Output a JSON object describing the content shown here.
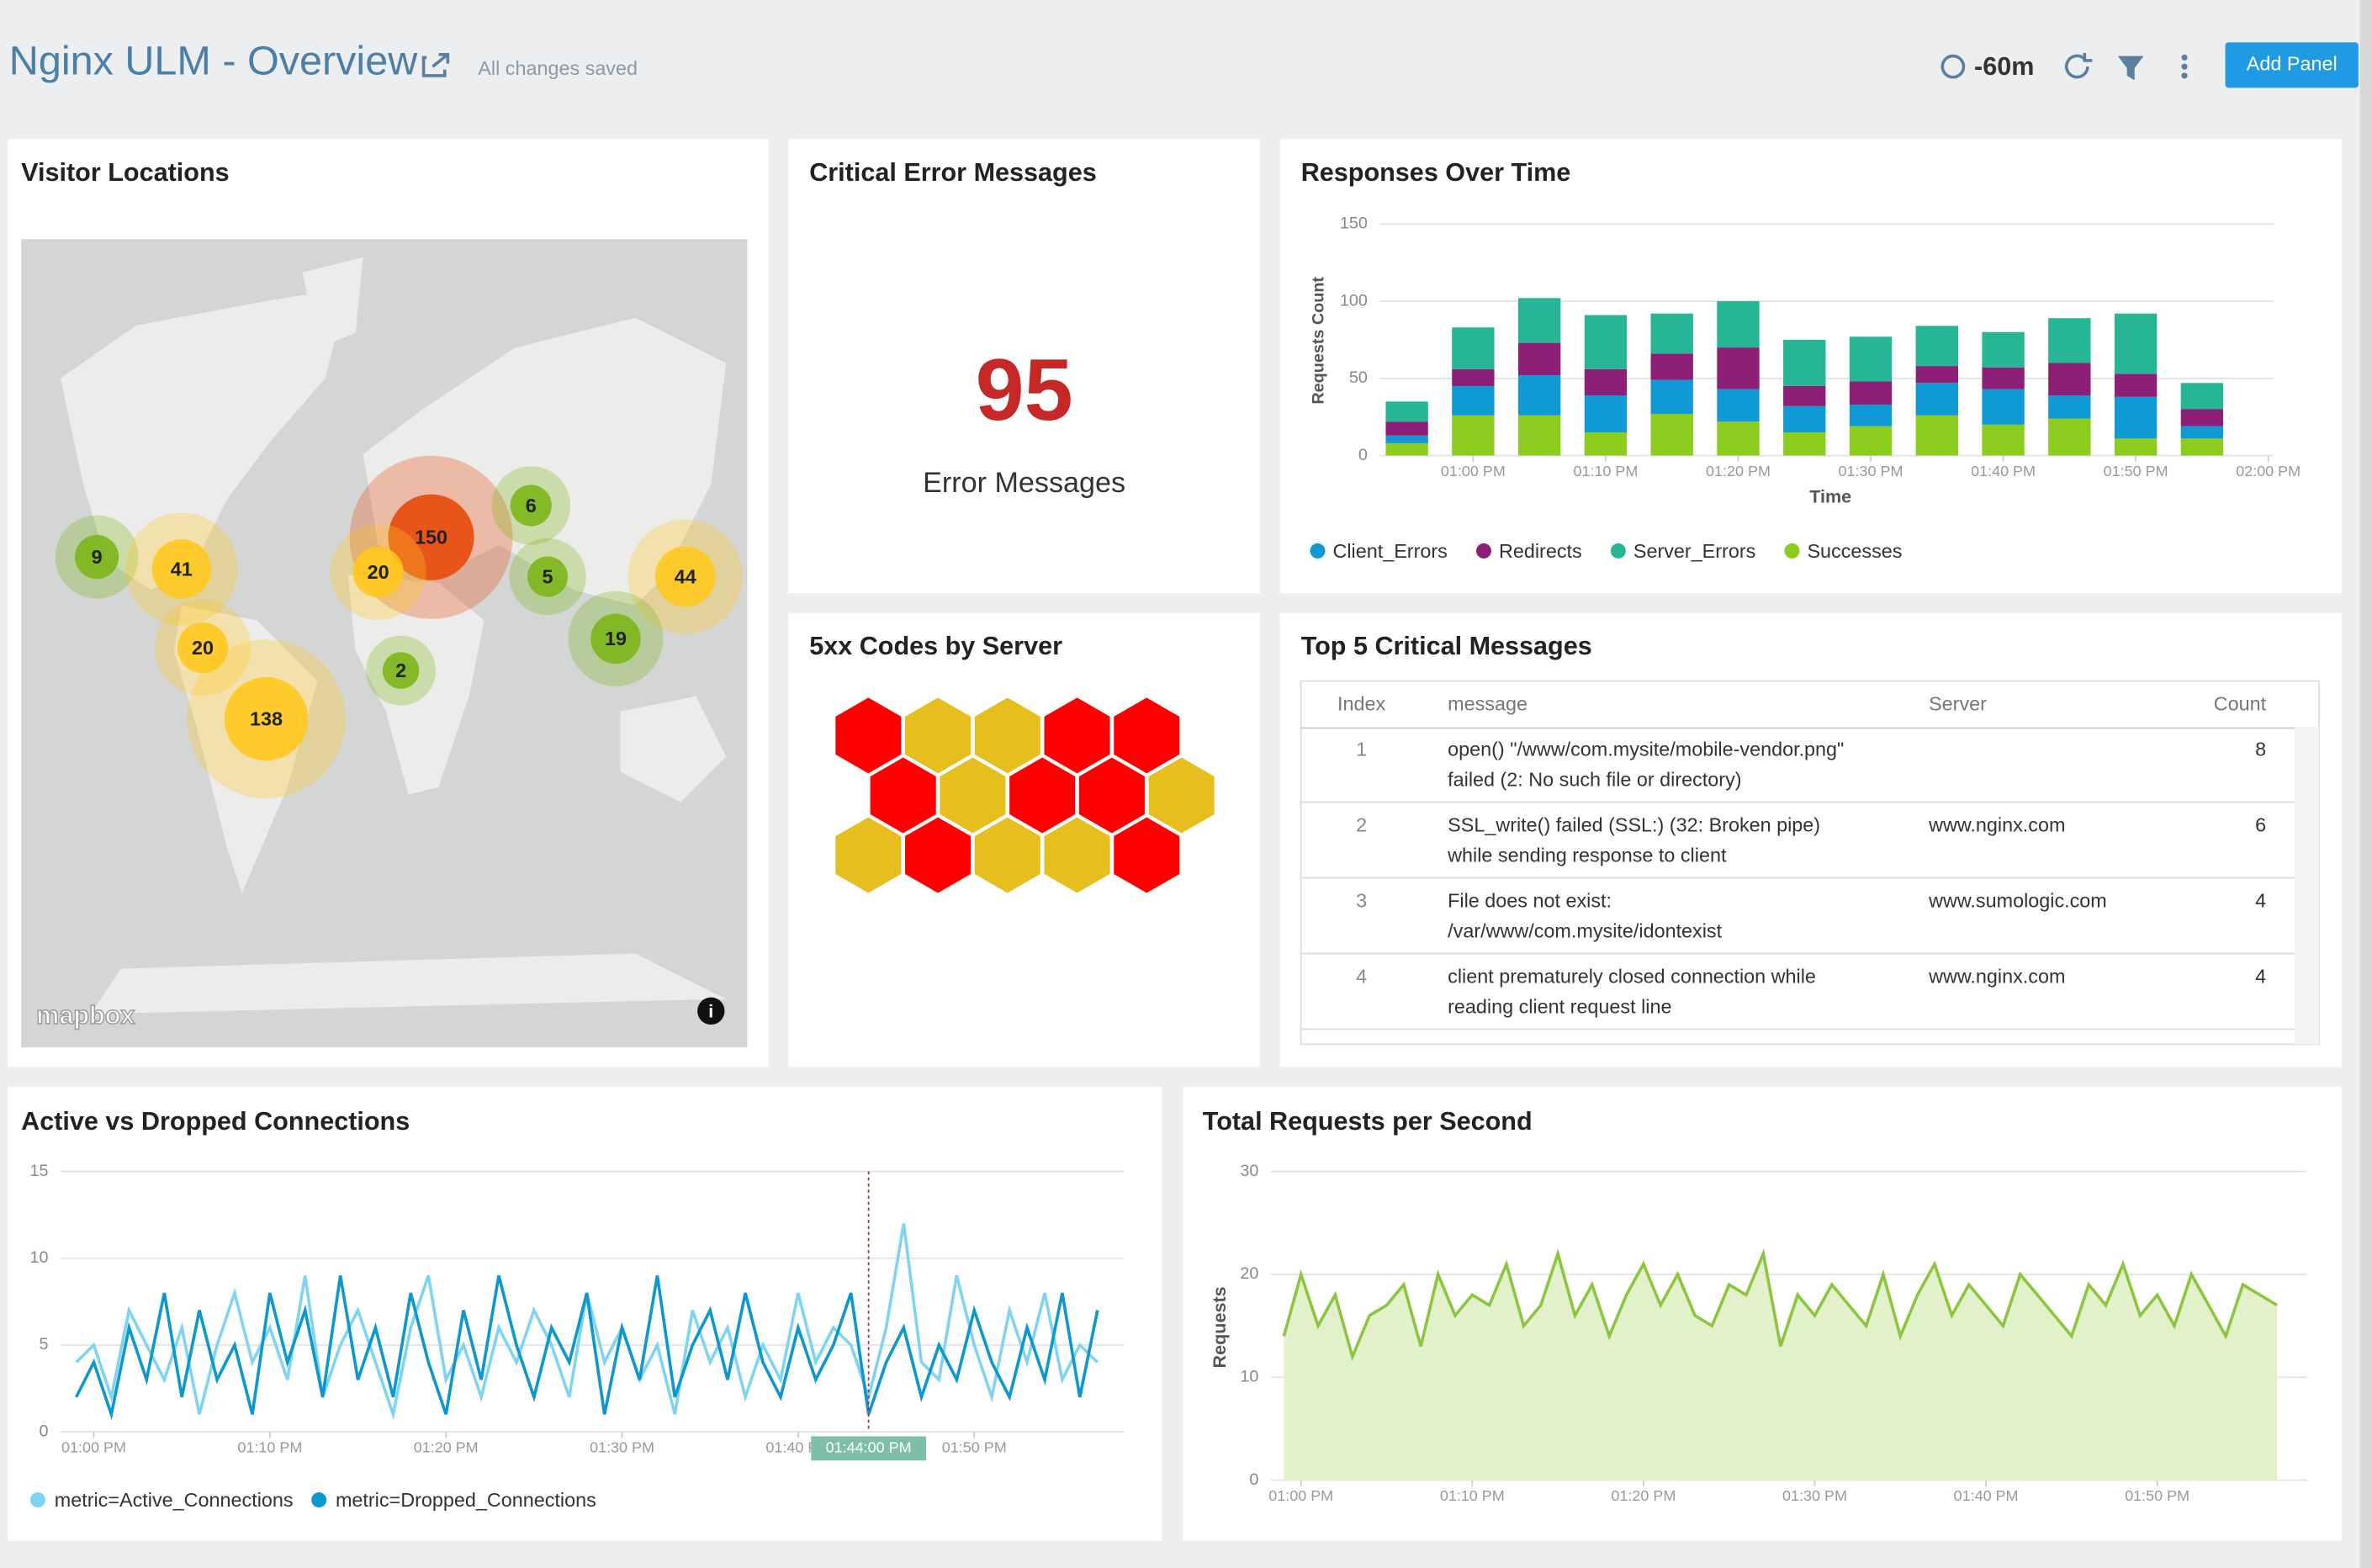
{
  "header": {
    "title": "Nginx ULM - Overview",
    "status": "All changes saved",
    "time_range": "-60m",
    "add_panel": "Add Panel"
  },
  "panels": {
    "visitor_locations": {
      "title": "Visitor Locations",
      "attribution": "mapbox",
      "clusters": [
        {
          "value": 9,
          "color": "#7cb518"
        },
        {
          "value": 41,
          "color": "#ffc81e"
        },
        {
          "value": 20,
          "color": "#ffc81e"
        },
        {
          "value": 138,
          "color": "#ffc81e"
        },
        {
          "value": 150,
          "color": "#e84a0c"
        },
        {
          "value": 20,
          "color": "#ffc81e"
        },
        {
          "value": 2,
          "color": "#7cb518"
        },
        {
          "value": 6,
          "color": "#7cb518"
        },
        {
          "value": 5,
          "color": "#7cb518"
        },
        {
          "value": 44,
          "color": "#ffc81e"
        },
        {
          "value": 19,
          "color": "#7cb518"
        }
      ]
    },
    "critical_errors": {
      "title": "Critical Error Messages",
      "value": 95,
      "label": "Error Messages",
      "color": "#c62828"
    },
    "responses": {
      "title": "Responses Over Time",
      "type": "bar",
      "stacked": true,
      "y_label": "Requests Count",
      "x_label": "Time",
      "ylim": [
        0,
        150
      ],
      "yticks": [
        0,
        50,
        100,
        150
      ],
      "xticks": [
        {
          "value": 1,
          "label": "01:00 PM"
        },
        {
          "value": 3,
          "label": "01:10 PM"
        },
        {
          "value": 5,
          "label": "01:20 PM"
        },
        {
          "value": 7,
          "label": "01:30 PM"
        },
        {
          "value": 9,
          "label": "01:40 PM"
        },
        {
          "value": 11,
          "label": "01:50 PM"
        },
        {
          "value": 13,
          "label": "02:00 PM"
        }
      ],
      "series": [
        {
          "name": "Client_Errors",
          "color": "#0f9ad6",
          "values": [
            5,
            19,
            26,
            24,
            22,
            21,
            17,
            14,
            21,
            23,
            15,
            27,
            8
          ]
        },
        {
          "name": "Redirects",
          "color": "#8e1f77",
          "values": [
            9,
            11,
            21,
            17,
            17,
            27,
            13,
            15,
            11,
            14,
            21,
            15,
            11
          ]
        },
        {
          "name": "Server_Errors",
          "color": "#26b595",
          "values": [
            13,
            27,
            29,
            35,
            26,
            30,
            30,
            29,
            26,
            23,
            29,
            39,
            17
          ]
        },
        {
          "name": "Successes",
          "color": "#8ccc1e",
          "values": [
            8,
            26,
            26,
            15,
            27,
            22,
            15,
            19,
            26,
            20,
            24,
            11,
            11
          ]
        }
      ],
      "stack_order": [
        3,
        0,
        1,
        2
      ]
    },
    "codes_5xx": {
      "title": "5xx Codes by Server",
      "hex_colors": [
        "#ff0000",
        "#e6bf1f",
        "#e6bf1f",
        "#ff0000",
        "#ff0000",
        "#ff0000",
        "#e6bf1f",
        "#ff0000",
        "#ff0000",
        "#e6bf1f",
        "#e6bf1f",
        "#ff0000",
        "#e6bf1f",
        "#e6bf1f",
        "#ff0000"
      ]
    },
    "top5": {
      "title": "Top 5 Critical Messages",
      "columns": [
        "Index",
        "message",
        "Server",
        "Count"
      ],
      "rows": [
        {
          "index": 1,
          "message": [
            "open() \"/www/com.mysite/mobile-vendor.png\"",
            "failed (2: No such file or directory)"
          ],
          "server": null,
          "count": 8
        },
        {
          "index": 2,
          "message": [
            "SSL_write() failed (SSL:) (32: Broken pipe)",
            "while sending response to client"
          ],
          "server": "www.nginx.com",
          "count": 6
        },
        {
          "index": 3,
          "message": [
            "File does not exist:",
            "/var/www/com.mysite/idontexist"
          ],
          "server": "www.sumologic.com",
          "count": 4
        },
        {
          "index": 4,
          "message": [
            "client prematurely closed connection while",
            "reading client request line"
          ],
          "server": "www.nginx.com",
          "count": 4
        }
      ]
    },
    "connections": {
      "title": "Active vs Dropped Connections",
      "type": "line",
      "ylim": [
        0,
        15
      ],
      "yticks": [
        0,
        5,
        10,
        15
      ],
      "xticks": [
        {
          "value": 0,
          "label": "01:00 PM"
        },
        {
          "value": 10,
          "label": "01:10 PM"
        },
        {
          "value": 20,
          "label": "01:20 PM"
        },
        {
          "value": 30,
          "label": "01:30 PM"
        },
        {
          "value": 40,
          "label": "01:40 PM"
        },
        {
          "value": 50,
          "label": "01:50 PM"
        }
      ],
      "hover": {
        "value": 44,
        "label": "01:44:00 PM"
      },
      "x": [
        -1,
        0,
        1,
        2,
        3,
        4,
        5,
        6,
        7,
        8,
        9,
        10,
        11,
        12,
        13,
        14,
        15,
        16,
        17,
        18,
        19,
        20,
        21,
        22,
        23,
        24,
        25,
        26,
        27,
        28,
        29,
        30,
        31,
        32,
        33,
        34,
        35,
        36,
        37,
        38,
        39,
        40,
        41,
        42,
        43,
        44,
        45,
        46,
        47,
        48,
        49,
        50,
        51,
        52,
        53,
        54,
        55,
        56,
        57
      ],
      "series": [
        {
          "name": "metric=Active_Connections",
          "color": "#7fd4f2",
          "values": [
            4,
            5,
            2,
            7,
            5,
            3,
            6,
            1,
            5,
            8,
            4,
            6,
            3,
            9,
            2,
            5,
            7,
            4,
            1,
            6,
            9,
            3,
            5,
            2,
            6,
            4,
            7,
            5,
            2,
            8,
            4,
            6,
            3,
            5,
            1,
            7,
            4,
            6,
            2,
            5,
            3,
            8,
            4,
            6,
            5,
            2,
            6,
            12,
            4,
            3,
            9,
            5,
            2,
            7,
            4,
            8,
            3,
            5,
            4
          ]
        },
        {
          "name": "metric=Dropped_Connections",
          "color": "#0c98cf",
          "values": [
            2,
            4,
            1,
            6,
            3,
            8,
            2,
            7,
            3,
            5,
            1,
            8,
            4,
            7,
            2,
            9,
            3,
            6,
            2,
            8,
            4,
            1,
            7,
            3,
            9,
            5,
            2,
            6,
            4,
            8,
            1,
            6,
            3,
            9,
            2,
            5,
            7,
            3,
            8,
            4,
            2,
            6,
            3,
            5,
            8,
            1,
            4,
            6,
            2,
            5,
            3,
            7,
            4,
            2,
            6,
            3,
            8,
            2,
            7
          ]
        }
      ]
    },
    "requests": {
      "title": "Total Requests per Second",
      "type": "area",
      "y_label": "Requests",
      "ylim": [
        0,
        30
      ],
      "yticks": [
        0,
        10,
        20,
        30
      ],
      "xticks": [
        {
          "value": 0,
          "label": "01:00 PM"
        },
        {
          "value": 10,
          "label": "01:10 PM"
        },
        {
          "value": 20,
          "label": "01:20 PM"
        },
        {
          "value": 30,
          "label": "01:30 PM"
        },
        {
          "value": 40,
          "label": "01:40 PM"
        },
        {
          "value": 50,
          "label": "01:50 PM"
        }
      ],
      "x": [
        -1,
        0,
        1,
        2,
        3,
        4,
        5,
        6,
        7,
        8,
        9,
        10,
        11,
        12,
        13,
        14,
        15,
        16,
        17,
        18,
        19,
        20,
        21,
        22,
        23,
        24,
        25,
        26,
        27,
        28,
        29,
        30,
        31,
        32,
        33,
        34,
        35,
        36,
        37,
        38,
        39,
        40,
        41,
        42,
        43,
        44,
        45,
        46,
        47,
        48,
        49,
        50,
        51,
        52,
        53,
        54,
        55,
        56,
        57
      ],
      "color": "#8cc63f",
      "fill": "#e3f1cb",
      "values": [
        14,
        20,
        15,
        18,
        12,
        16,
        17,
        19,
        13,
        20,
        16,
        18,
        17,
        21,
        15,
        17,
        22,
        16,
        19,
        14,
        18,
        21,
        17,
        20,
        16,
        15,
        19,
        18,
        22,
        13,
        18,
        16,
        19,
        17,
        15,
        20,
        14,
        18,
        21,
        16,
        19,
        17,
        15,
        20,
        18,
        16,
        14,
        19,
        17,
        21,
        16,
        18,
        15,
        20,
        17,
        14,
        19,
        18,
        17
      ]
    }
  }
}
